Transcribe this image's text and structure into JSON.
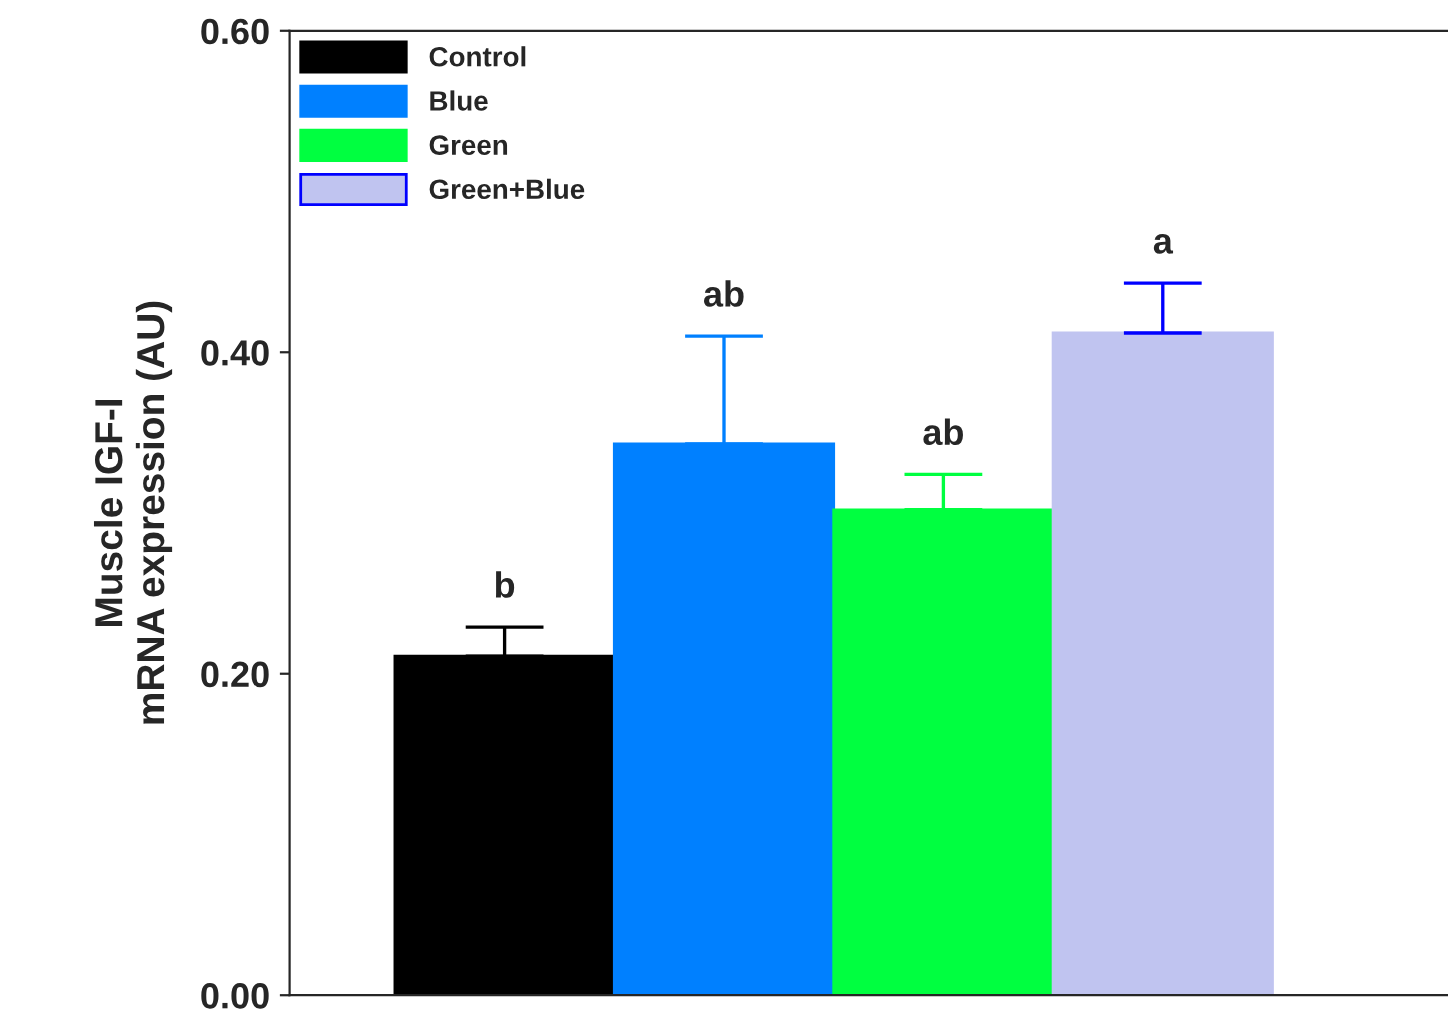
{
  "chart_data": {
    "type": "bar",
    "ylabel": "Muscle IGF-I\nmRNA expression (AU)",
    "categories": [
      null,
      null,
      null,
      null
    ],
    "series": [
      {
        "name": "Control",
        "color": "#000000",
        "values": [
          0.211,
          null,
          null,
          null
        ],
        "errors": [
          [
            0.211,
            0.229
          ],
          null,
          null,
          null
        ]
      },
      {
        "name": "Blue",
        "color": "#0080ff",
        "values": [
          null,
          0.343,
          null,
          null
        ],
        "errors": [
          null,
          [
            0.343,
            0.41
          ],
          null,
          null
        ]
      },
      {
        "name": "Green",
        "color": "#00ff40",
        "values": [
          null,
          null,
          0.302,
          null
        ],
        "errors": [
          null,
          null,
          [
            0.302,
            0.324
          ],
          null
        ]
      },
      {
        "name": "Green+Blue",
        "color": "#c0c4f0",
        "values": [
          null,
          null,
          null,
          0.412
        ],
        "errors": [
          null,
          null,
          null,
          [
            0.412,
            0.443
          ]
        ]
      }
    ],
    "annotations": [
      {
        "text": "b",
        "y": 0.229
      },
      {
        "text": "ab",
        "y": 0.41
      },
      {
        "text": "ab",
        "y": 0.324
      },
      {
        "text": "a",
        "y": 0.443
      }
    ],
    "ylim": [
      0,
      0.6
    ],
    "yticks": [
      {
        "value": 0,
        "label": "0.00"
      },
      {
        "value": 0.2,
        "label": "0.20"
      },
      {
        "value": 0.4,
        "label": "0.40"
      },
      {
        "value": 0.6,
        "label": "0.60"
      }
    ],
    "tick_labels": "y",
    "legend": "top left",
    "grid": false
  }
}
